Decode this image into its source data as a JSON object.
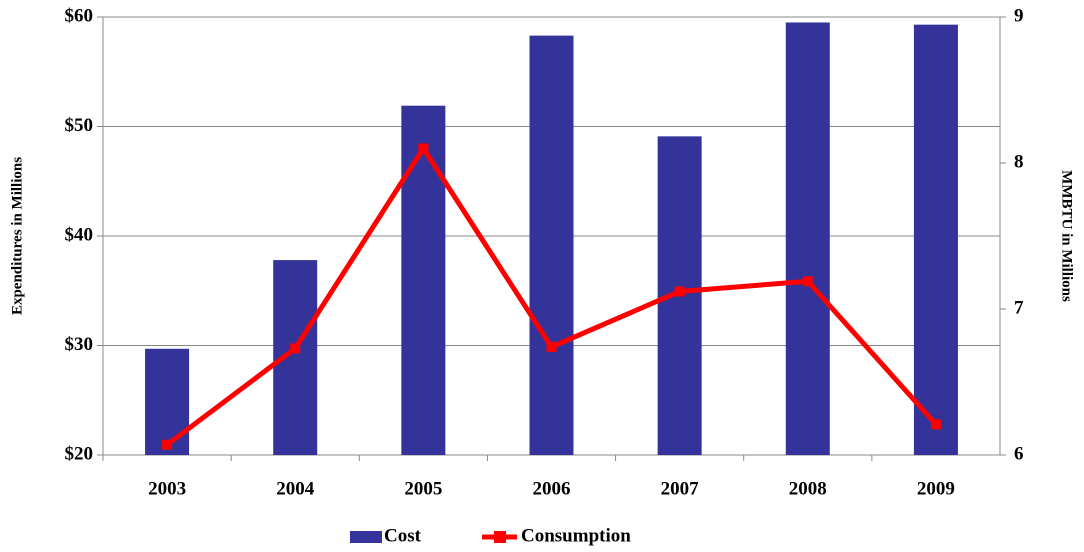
{
  "chart_data": {
    "type": "bar_line",
    "y_label": "Expenditures in Millions",
    "y2_label": "MMBTU in Millions",
    "categories": [
      "2003",
      "2004",
      "2005",
      "2006",
      "2007",
      "2008",
      "2009"
    ],
    "series": [
      {
        "name": "Cost",
        "type": "bar",
        "color": "#333399",
        "values": [
          29.7,
          37.8,
          51.9,
          58.3,
          49.1,
          59.5,
          59.3
        ]
      },
      {
        "name": "Consumption",
        "type": "line",
        "axis": "y2",
        "color": "#ff0000",
        "values": [
          6.07,
          6.73,
          8.1,
          6.74,
          7.12,
          7.19,
          6.21
        ]
      }
    ],
    "ylim": [
      20,
      60
    ],
    "yticks": [
      {
        "value": 20,
        "label": "$20"
      },
      {
        "value": 30,
        "label": "$30"
      },
      {
        "value": 40,
        "label": "$40"
      },
      {
        "value": 50,
        "label": "$50"
      },
      {
        "value": 60,
        "label": "$60"
      }
    ],
    "y2lim": [
      6,
      9
    ],
    "y2ticks": [
      6,
      7,
      8,
      9
    ],
    "grid": true,
    "legend": "bottom"
  }
}
